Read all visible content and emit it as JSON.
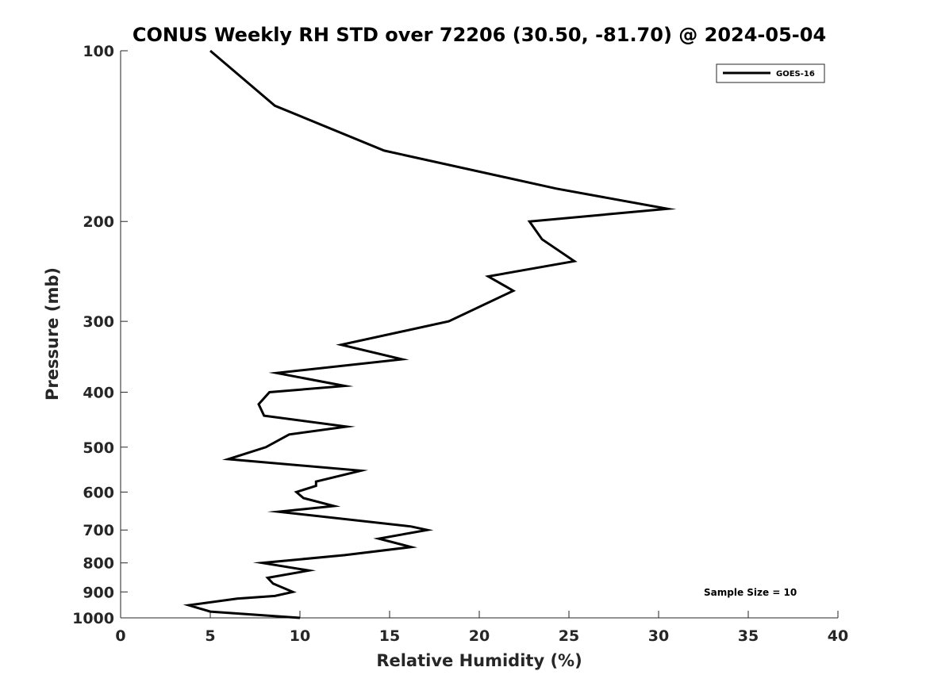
{
  "chart_data": {
    "type": "line",
    "title": "CONUS Weekly RH STD over 72206 (30.50, -81.70) @ 2024-05-04",
    "xlabel": "Relative Humidity (%)",
    "ylabel": "Pressure (mb)",
    "xlim": [
      0,
      40
    ],
    "ylim": [
      100,
      1000
    ],
    "y_scale": "log",
    "y_inverted": true,
    "x_ticks": [
      0,
      5,
      10,
      15,
      20,
      25,
      30,
      35,
      40
    ],
    "y_ticks": [
      100,
      200,
      300,
      400,
      500,
      600,
      700,
      800,
      900,
      1000
    ],
    "grid": false,
    "legend_position": "top-right",
    "line_color": "#000000",
    "annotation": "Sample Size = 10",
    "series": [
      {
        "name": "GOES-16",
        "points": [
          [
            5.0,
            100
          ],
          [
            8.6,
            125
          ],
          [
            14.7,
            150
          ],
          [
            24.3,
            175
          ],
          [
            30.5,
            190
          ],
          [
            22.8,
            200
          ],
          [
            23.5,
            215
          ],
          [
            25.3,
            235
          ],
          [
            20.5,
            250
          ],
          [
            21.9,
            265
          ],
          [
            18.3,
            300
          ],
          [
            12.3,
            330
          ],
          [
            15.7,
            350
          ],
          [
            8.7,
            370
          ],
          [
            12.5,
            390
          ],
          [
            8.3,
            400
          ],
          [
            7.7,
            420
          ],
          [
            8.0,
            440
          ],
          [
            12.6,
            460
          ],
          [
            9.4,
            475
          ],
          [
            8.1,
            500
          ],
          [
            6.0,
            525
          ],
          [
            13.4,
            550
          ],
          [
            10.9,
            575
          ],
          [
            10.9,
            585
          ],
          [
            9.8,
            600
          ],
          [
            10.2,
            615
          ],
          [
            11.9,
            635
          ],
          [
            8.8,
            650
          ],
          [
            16.2,
            690
          ],
          [
            17.1,
            700
          ],
          [
            14.4,
            725
          ],
          [
            16.2,
            750
          ],
          [
            12.5,
            775
          ],
          [
            7.9,
            800
          ],
          [
            10.5,
            825
          ],
          [
            8.2,
            850
          ],
          [
            8.5,
            870
          ],
          [
            9.6,
            900
          ],
          [
            8.6,
            915
          ],
          [
            6.5,
            925
          ],
          [
            3.8,
            950
          ],
          [
            5.0,
            975
          ],
          [
            10.0,
            1000
          ]
        ]
      }
    ]
  }
}
